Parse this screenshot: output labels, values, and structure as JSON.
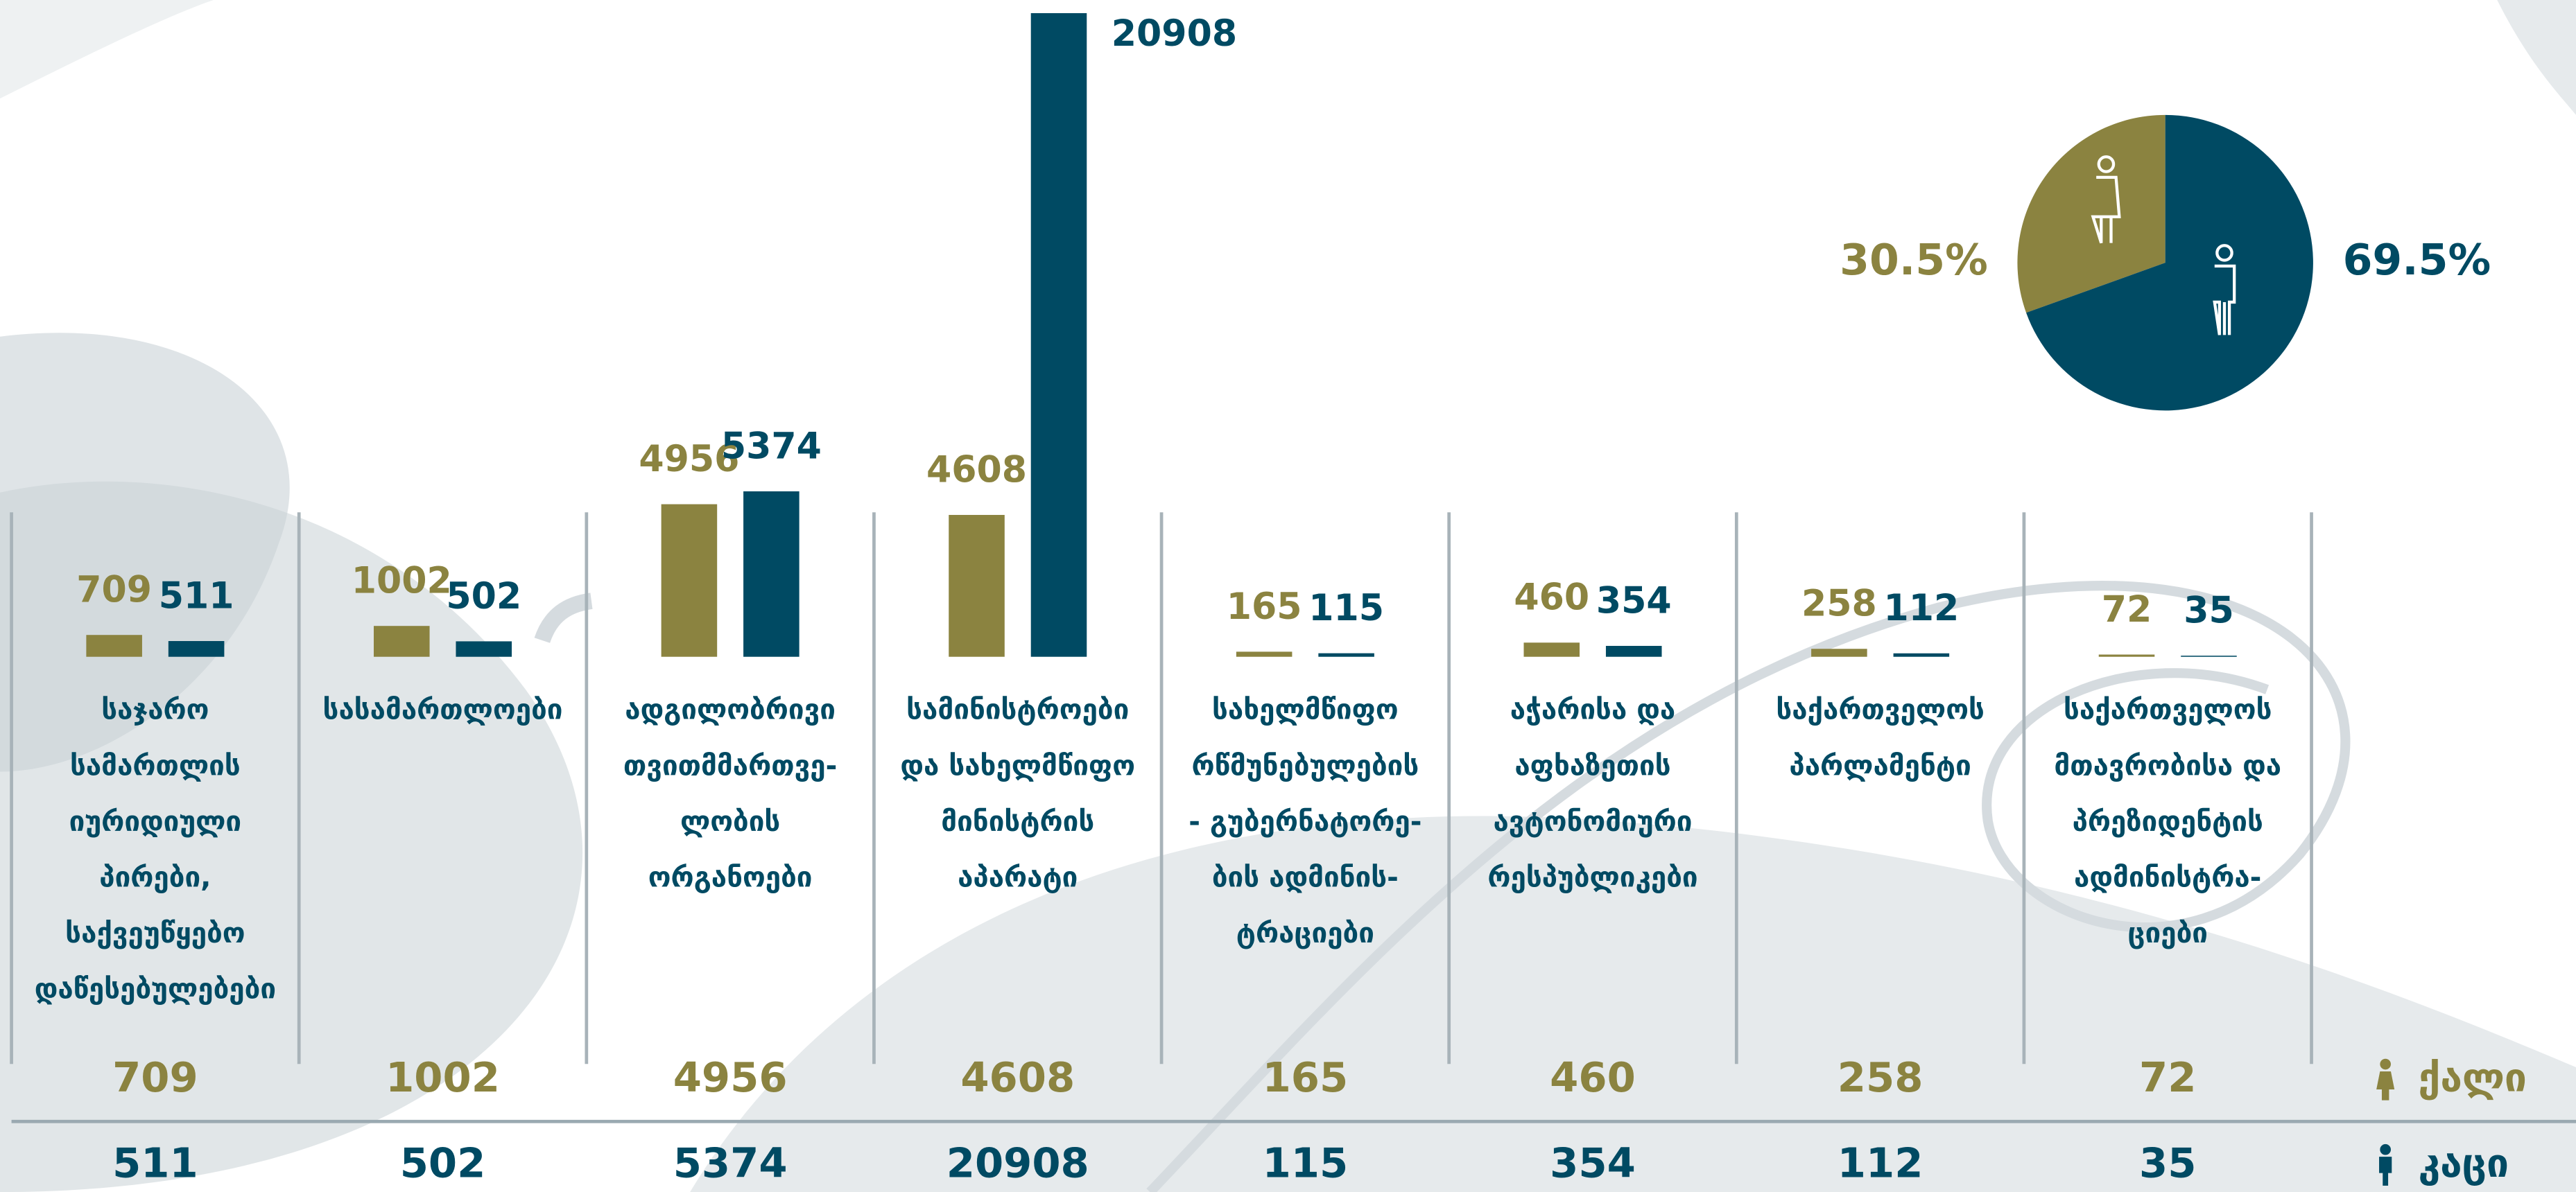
{
  "chart_data": [
    {
      "type": "bar",
      "categories": [
        "საჯარო\nსამართლის\nიურიდიული\nპირები,\nსაქვეუწყებო\nდაწესებულებები",
        "სასამართლოები",
        "ადგილობრივი\nთვითმმართვე-\nლობის\nორგანოები",
        "სამინისტროები\nდა სახელმწიფო\nმინისტრის\nაპარატი",
        "სახელმწიფო\nრწმუნებულების\n- გუბერნატორე-\nბის ადმინის-\nტრაციები",
        "აჭარისა და\nაფხაზეთის\nავტონომიური\nრესპუბლიკები",
        "საქართველოს\nპარლამენტი",
        "საქართველოს\nმთავრობისა და\nპრეზიდენტის\nადმინისტრა-\nციები"
      ],
      "series": [
        {
          "name": "ქალი",
          "color": "#8b8340",
          "values": [
            709,
            1002,
            4956,
            4608,
            165,
            460,
            258,
            72
          ]
        },
        {
          "name": "კაცი",
          "color": "#004a63",
          "values": [
            511,
            502,
            5374,
            20908,
            115,
            354,
            112,
            35
          ]
        }
      ]
    },
    {
      "type": "pie",
      "values": [
        30.5,
        69.5
      ],
      "value_labels": [
        "30.5%",
        "69.5%"
      ],
      "colors": [
        "#8b8340",
        "#004a63"
      ]
    }
  ]
}
